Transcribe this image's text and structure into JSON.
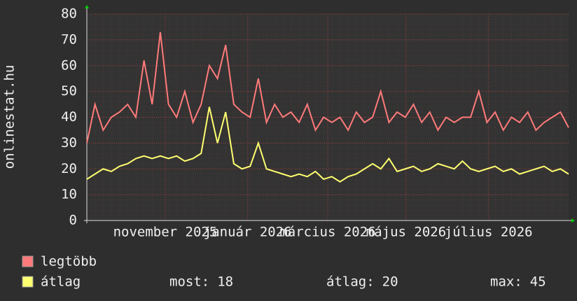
{
  "chart_data": {
    "type": "line",
    "ylabel": "onlinestat.hu",
    "xlim": [
      0,
      59
    ],
    "xticks": [
      {
        "value": 9.6,
        "label": "november 2025"
      },
      {
        "value": 19.7,
        "label": "január 2026"
      },
      {
        "value": 29.5,
        "label": "március 2026"
      },
      {
        "value": 39.1,
        "label": "május 2026"
      },
      {
        "value": 49.2,
        "label": "július 2026"
      }
    ],
    "ylim": [
      0,
      80
    ],
    "yticks": [
      0,
      10,
      20,
      30,
      40,
      50,
      60,
      70,
      80
    ],
    "grid": true,
    "series": [
      {
        "name": "legtöbb",
        "color": "#ff7a7a",
        "values": [
          30,
          45,
          35,
          40,
          42,
          45,
          40,
          62,
          45,
          73,
          45,
          40,
          50,
          38,
          45,
          60,
          55,
          68,
          45,
          42,
          40,
          55,
          38,
          45,
          40,
          42,
          38,
          45,
          35,
          40,
          38,
          40,
          35,
          42,
          38,
          40,
          50,
          38,
          42,
          40,
          45,
          38,
          42,
          35,
          40,
          38,
          40,
          40,
          50,
          38,
          42,
          35,
          40,
          38,
          42,
          35,
          38,
          40,
          42,
          36
        ]
      },
      {
        "name": "átlag",
        "color": "#ffff70",
        "values": [
          16,
          18,
          20,
          19,
          21,
          22,
          24,
          25,
          24,
          25,
          24,
          25,
          23,
          24,
          26,
          44,
          30,
          42,
          22,
          20,
          21,
          30,
          20,
          19,
          18,
          17,
          18,
          17,
          19,
          16,
          17,
          15,
          17,
          18,
          20,
          22,
          20,
          24,
          19,
          20,
          21,
          19,
          20,
          22,
          21,
          20,
          23,
          20,
          19,
          20,
          21,
          19,
          20,
          18,
          19,
          20,
          21,
          19,
          20,
          18
        ]
      }
    ],
    "stats": [
      {
        "label": "most:",
        "value": 18
      },
      {
        "label": "átlag:",
        "value": 20
      },
      {
        "label": "max:",
        "value": 45
      }
    ]
  }
}
